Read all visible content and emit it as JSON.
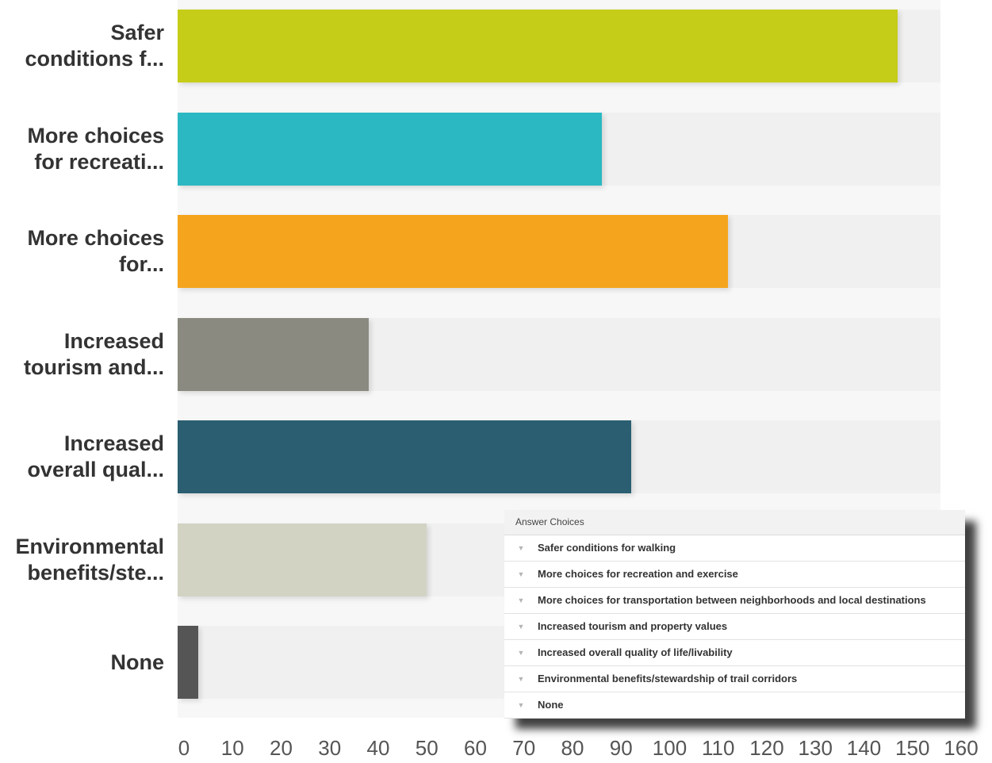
{
  "chart_data": {
    "type": "bar",
    "orientation": "horizontal",
    "categories": [
      "Safer\nconditions f...",
      "More choices\nfor recreati...",
      "More choices\nfor...",
      "Increased\ntourism and...",
      "Increased\noverall qual...",
      "Environmental\nbenefits/ste...",
      "None"
    ],
    "values": [
      147,
      86,
      112,
      38,
      92,
      50,
      3
    ],
    "colors": [
      "#c6cd19",
      "#2cb8c2",
      "#f4a51d",
      "#8a8a80",
      "#2a5e70",
      "#d3d3c4",
      "#555555"
    ],
    "xlim": [
      0,
      160
    ],
    "xticks": [
      "0",
      "10",
      "20",
      "30",
      "40",
      "50",
      "60",
      "70",
      "80",
      "90",
      "100",
      "110",
      "120",
      "130",
      "140",
      "150",
      "160"
    ],
    "title": "",
    "xlabel": "",
    "ylabel": ""
  },
  "answer_table": {
    "header": "Answer Choices",
    "rows": [
      "Safer conditions for walking",
      "More choices for recreation and exercise",
      "More choices for transportation between neighborhoods and local destinations",
      "Increased tourism and property values",
      "Increased overall quality of life/livability",
      "Environmental benefits/stewardship of trail corridors",
      "None"
    ],
    "row_icon": "chevron-down-icon"
  }
}
